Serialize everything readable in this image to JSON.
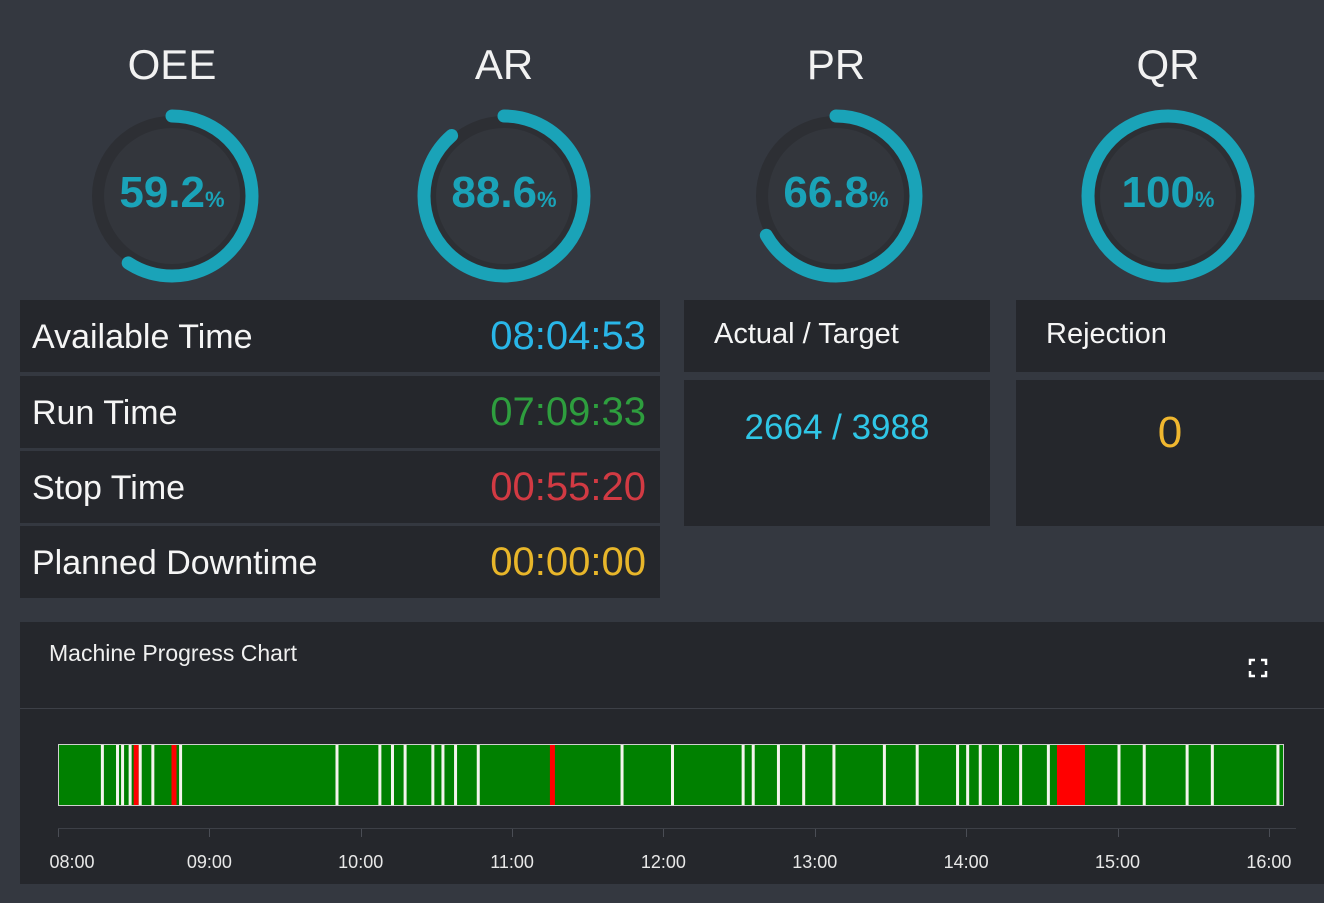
{
  "gauges": [
    {
      "title": "OEE",
      "value": "59.2",
      "unit": "%",
      "fraction": 0.592
    },
    {
      "title": "AR",
      "value": "88.6",
      "unit": "%",
      "fraction": 0.886
    },
    {
      "title": "PR",
      "value": "66.8",
      "unit": "%",
      "fraction": 0.668
    },
    {
      "title": "QR",
      "value": "100",
      "unit": "%",
      "fraction": 1.0
    }
  ],
  "colors": {
    "gauge": "#1aa3b8",
    "available": "#29b6e8",
    "run": "#2e9e3e",
    "stop": "#d23a43",
    "planned": "#e8b62a",
    "actual_target": "#2fc6e6",
    "rejection": "#f0b72f",
    "running": "#008000",
    "stopped": "#ff0000",
    "idle": "#f4f4ec"
  },
  "times": {
    "available": {
      "label": "Available Time",
      "value": "08:04:53"
    },
    "run": {
      "label": "Run Time",
      "value": "07:09:33"
    },
    "stop": {
      "label": "Stop Time",
      "value": "00:55:20"
    },
    "planned": {
      "label": "Planned Downtime",
      "value": "00:00:00"
    }
  },
  "actual_target": {
    "label": "Actual / Target",
    "value": "2664 / 3988"
  },
  "rejection": {
    "label": "Rejection",
    "value": "0"
  },
  "chart": {
    "title": "Machine Progress Chart",
    "expand_icon": "expand-icon",
    "axis_start": "08:00",
    "axis_end": "16:06",
    "ticks": [
      "08:00",
      "09:00",
      "10:00",
      "11:00",
      "12:00",
      "13:00",
      "14:00",
      "15:00",
      "16:00"
    ],
    "events": [
      {
        "time": "08:17",
        "state": "idle"
      },
      {
        "time": "08:23",
        "state": "idle"
      },
      {
        "time": "08:25",
        "state": "idle"
      },
      {
        "time": "08:28",
        "state": "idle"
      },
      {
        "time": "08:30",
        "state": "stopped"
      },
      {
        "time": "08:32",
        "state": "idle"
      },
      {
        "time": "08:37",
        "state": "idle"
      },
      {
        "time": "08:45",
        "state": "stopped"
      },
      {
        "time": "08:48",
        "state": "idle"
      },
      {
        "time": "09:50",
        "state": "idle"
      },
      {
        "time": "10:07",
        "state": "idle"
      },
      {
        "time": "10:12",
        "state": "idle"
      },
      {
        "time": "10:17",
        "state": "idle"
      },
      {
        "time": "10:28",
        "state": "idle"
      },
      {
        "time": "10:32",
        "state": "idle"
      },
      {
        "time": "10:37",
        "state": "idle"
      },
      {
        "time": "10:46",
        "state": "idle"
      },
      {
        "time": "11:15",
        "state": "stopped"
      },
      {
        "time": "11:43",
        "state": "idle"
      },
      {
        "time": "12:03",
        "state": "idle"
      },
      {
        "time": "12:31",
        "state": "idle"
      },
      {
        "time": "12:35",
        "state": "idle"
      },
      {
        "time": "12:45",
        "state": "idle"
      },
      {
        "time": "12:55",
        "state": "idle"
      },
      {
        "time": "13:07",
        "state": "idle"
      },
      {
        "time": "13:27",
        "state": "idle"
      },
      {
        "time": "13:40",
        "state": "idle"
      },
      {
        "time": "13:56",
        "state": "idle"
      },
      {
        "time": "14:00",
        "state": "idle"
      },
      {
        "time": "14:05",
        "state": "idle"
      },
      {
        "time": "14:13",
        "state": "idle"
      },
      {
        "time": "14:21",
        "state": "idle"
      },
      {
        "time": "14:32",
        "state": "idle"
      },
      {
        "time": "14:36",
        "state": "stopped"
      },
      {
        "time": "15:00",
        "state": "idle"
      },
      {
        "time": "15:10",
        "state": "idle"
      },
      {
        "time": "15:27",
        "state": "idle"
      },
      {
        "time": "15:37",
        "state": "idle"
      },
      {
        "time": "16:03",
        "state": "idle"
      }
    ]
  }
}
